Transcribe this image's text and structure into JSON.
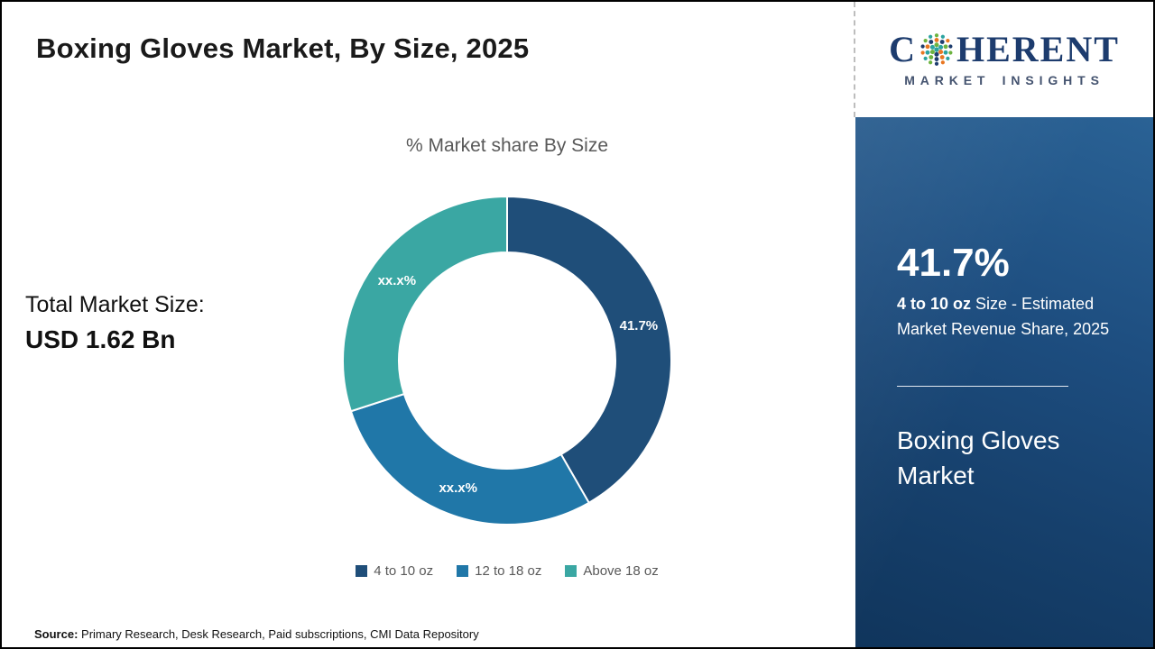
{
  "header": {
    "title": "Boxing Gloves Market, By Size, 2025"
  },
  "total_market": {
    "label": "Total Market Size:",
    "value": "USD 1.62 Bn"
  },
  "chart_data": {
    "type": "pie",
    "subtype": "donut",
    "title": "% Market share By Size",
    "categories": [
      "4 to 10 oz",
      "12 to 18 oz",
      "Above 18 oz"
    ],
    "values": [
      41.7,
      28.3,
      30.0
    ],
    "display_labels": [
      "41.7%",
      "xx.x%",
      "xx.x%"
    ],
    "colors": [
      "#1f4e79",
      "#2077a8",
      "#3aa7a3"
    ],
    "legend_position": "bottom",
    "start_angle_deg": 0,
    "direction": "clockwise"
  },
  "sidebar": {
    "stat_value": "41.7%",
    "description_bold": "4 to 10 oz",
    "description_rest": " Size - Estimated Market Revenue Share, 2025",
    "market_name": "Boxing Gloves Market"
  },
  "source": {
    "label": "Source:",
    "text": " Primary Research, Desk Research, Paid subscriptions, CMI Data Repository"
  },
  "logo": {
    "part1": "C",
    "part2": "HERENT",
    "subtitle": "MARKET INSIGHTS",
    "globe_icon": "dotted-globe-icon",
    "globe_colors": [
      "#6cb33f",
      "#2ba3a0",
      "#e87722",
      "#1d3c6e"
    ]
  },
  "theme": {
    "panel_blue": "#1b4876",
    "muted_text": "#595959",
    "frame_border": "#000000"
  }
}
